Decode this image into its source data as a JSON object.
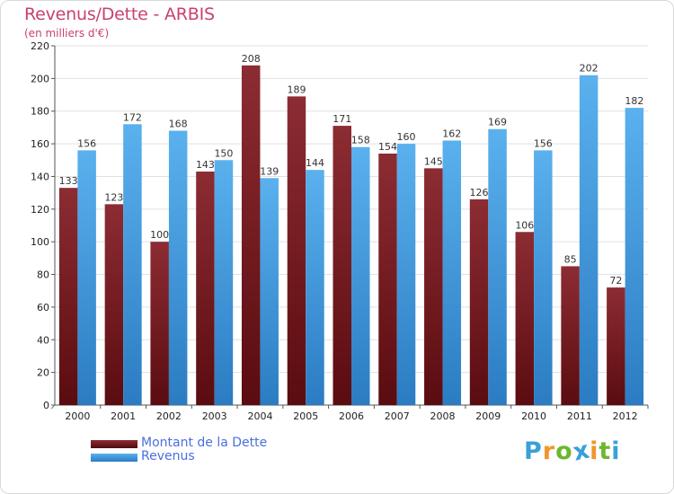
{
  "chart_data": {
    "type": "bar",
    "title": "Revenus/Dette - ARBIS",
    "subtitle": "(en milliers d'€)",
    "categories": [
      "2000",
      "2001",
      "2002",
      "2003",
      "2004",
      "2005",
      "2006",
      "2007",
      "2008",
      "2009",
      "2010",
      "2011",
      "2012"
    ],
    "series": [
      {
        "name": "Montant de la Dette",
        "color": "#7a1f24",
        "values": [
          133,
          123,
          100,
          143,
          208,
          189,
          171,
          154,
          145,
          126,
          106,
          85,
          72
        ]
      },
      {
        "name": "Revenus",
        "color": "#4ea7e6",
        "values": [
          156,
          172,
          168,
          150,
          139,
          144,
          158,
          160,
          162,
          169,
          156,
          202,
          182
        ]
      }
    ],
    "ylim": [
      0,
      220
    ],
    "yticks": [
      0,
      20,
      40,
      60,
      80,
      100,
      120,
      140,
      160,
      180,
      200,
      220
    ],
    "grid": true,
    "legend": "bottom-left",
    "data_labels": true
  },
  "logo": {
    "letters": [
      "P",
      "r",
      "o",
      "x",
      "i",
      "t",
      "i"
    ],
    "colors": [
      "#3aa0d8",
      "#f0962a",
      "#6ab82e",
      "#3aa0d8",
      "#f0962a",
      "#6ab82e",
      "#3aa0d8"
    ]
  }
}
